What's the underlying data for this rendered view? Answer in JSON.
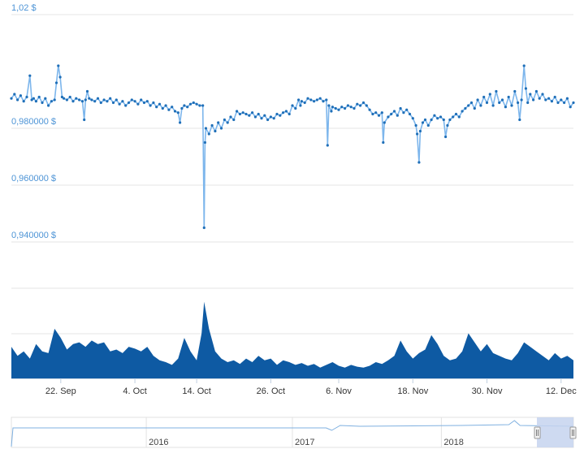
{
  "chart_data": {
    "type": "line",
    "title": "",
    "xlabel": "",
    "ylabel": "",
    "ylim": [
      0.93,
      1.02
    ],
    "y_ticks": [
      {
        "value": 1.02,
        "label": "1,02 $"
      },
      {
        "value": 0.98,
        "label": "0,980000 $"
      },
      {
        "value": 0.96,
        "label": "0,960000 $"
      },
      {
        "value": 0.94,
        "label": "0,940000 $"
      }
    ],
    "x_ticks": [
      {
        "day": 8,
        "label": "22. Sep"
      },
      {
        "day": 20,
        "label": "4. Oct"
      },
      {
        "day": 30,
        "label": "14. Oct"
      },
      {
        "day": 42,
        "label": "26. Oct"
      },
      {
        "day": 53,
        "label": "6. Nov"
      },
      {
        "day": 65,
        "label": "18. Nov"
      },
      {
        "day": 77,
        "label": "30. Nov"
      },
      {
        "day": 89,
        "label": "12. Dec"
      }
    ],
    "x_range_days": [
      0,
      91
    ],
    "grid": true,
    "legend": "none",
    "colors": {
      "line": "#1f6fb8",
      "line_light": "#7db6ec",
      "volume": "#0e5aa3",
      "axis_label": "#4d94d6",
      "grid": "#e6e6e6",
      "navigator_mask": "#c5d3ee"
    },
    "price_series": {
      "name": "",
      "points": [
        [
          0,
          0.9905
        ],
        [
          0.5,
          0.992
        ],
        [
          1,
          0.99
        ],
        [
          1.5,
          0.9915
        ],
        [
          2,
          0.9895
        ],
        [
          2.5,
          0.991
        ],
        [
          3,
          0.9985
        ],
        [
          3.3,
          0.99
        ],
        [
          3.6,
          0.9905
        ],
        [
          4,
          0.9895
        ],
        [
          4.5,
          0.991
        ],
        [
          5,
          0.989
        ],
        [
          5.5,
          0.9905
        ],
        [
          6,
          0.988
        ],
        [
          6.5,
          0.9895
        ],
        [
          7,
          0.99
        ],
        [
          7.3,
          0.996
        ],
        [
          7.6,
          1.002
        ],
        [
          7.9,
          0.998
        ],
        [
          8.2,
          0.991
        ],
        [
          8.5,
          0.9905
        ],
        [
          9,
          0.99
        ],
        [
          9.5,
          0.991
        ],
        [
          10,
          0.9895
        ],
        [
          10.5,
          0.9905
        ],
        [
          11,
          0.99
        ],
        [
          11.5,
          0.9895
        ],
        [
          11.8,
          0.983
        ],
        [
          12,
          0.99
        ],
        [
          12.3,
          0.993
        ],
        [
          12.6,
          0.9905
        ],
        [
          13,
          0.99
        ],
        [
          13.5,
          0.9895
        ],
        [
          14,
          0.9905
        ],
        [
          14.5,
          0.989
        ],
        [
          15,
          0.99
        ],
        [
          15.5,
          0.9895
        ],
        [
          16,
          0.9905
        ],
        [
          16.5,
          0.989
        ],
        [
          17,
          0.99
        ],
        [
          17.5,
          0.9885
        ],
        [
          18,
          0.9895
        ],
        [
          18.5,
          0.988
        ],
        [
          19,
          0.989
        ],
        [
          19.5,
          0.99
        ],
        [
          20,
          0.9895
        ],
        [
          20.5,
          0.9885
        ],
        [
          21,
          0.99
        ],
        [
          21.5,
          0.989
        ],
        [
          22,
          0.9895
        ],
        [
          22.5,
          0.988
        ],
        [
          23,
          0.989
        ],
        [
          23.5,
          0.9875
        ],
        [
          24,
          0.9885
        ],
        [
          24.5,
          0.987
        ],
        [
          25,
          0.988
        ],
        [
          25.5,
          0.9865
        ],
        [
          26,
          0.9875
        ],
        [
          26.5,
          0.986
        ],
        [
          27,
          0.9855
        ],
        [
          27.3,
          0.982
        ],
        [
          27.6,
          0.987
        ],
        [
          28,
          0.988
        ],
        [
          28.5,
          0.9875
        ],
        [
          29,
          0.9885
        ],
        [
          29.5,
          0.989
        ],
        [
          30,
          0.9885
        ],
        [
          30.5,
          0.988
        ],
        [
          31,
          0.988
        ],
        [
          31.2,
          0.945
        ],
        [
          31.35,
          0.975
        ],
        [
          31.5,
          0.98
        ],
        [
          32,
          0.978
        ],
        [
          32.5,
          0.981
        ],
        [
          33,
          0.979
        ],
        [
          33.5,
          0.982
        ],
        [
          34,
          0.98
        ],
        [
          34.5,
          0.983
        ],
        [
          35,
          0.982
        ],
        [
          35.5,
          0.984
        ],
        [
          36,
          0.983
        ],
        [
          36.5,
          0.986
        ],
        [
          37,
          0.985
        ],
        [
          37.5,
          0.9855
        ],
        [
          38,
          0.985
        ],
        [
          38.5,
          0.9845
        ],
        [
          39,
          0.9855
        ],
        [
          39.5,
          0.984
        ],
        [
          40,
          0.985
        ],
        [
          40.5,
          0.9835
        ],
        [
          41,
          0.9845
        ],
        [
          41.5,
          0.983
        ],
        [
          42,
          0.984
        ],
        [
          42.5,
          0.9835
        ],
        [
          43,
          0.985
        ],
        [
          43.5,
          0.9845
        ],
        [
          44,
          0.9855
        ],
        [
          44.5,
          0.986
        ],
        [
          45,
          0.985
        ],
        [
          45.5,
          0.988
        ],
        [
          46,
          0.987
        ],
        [
          46.5,
          0.99
        ],
        [
          46.8,
          0.988
        ],
        [
          47,
          0.9895
        ],
        [
          47.5,
          0.989
        ],
        [
          48,
          0.9905
        ],
        [
          48.5,
          0.99
        ],
        [
          49,
          0.9895
        ],
        [
          49.5,
          0.99
        ],
        [
          50,
          0.9905
        ],
        [
          50.5,
          0.9895
        ],
        [
          51,
          0.99
        ],
        [
          51.2,
          0.974
        ],
        [
          51.4,
          0.988
        ],
        [
          51.8,
          0.986
        ],
        [
          52,
          0.9875
        ],
        [
          52.5,
          0.987
        ],
        [
          53,
          0.9865
        ],
        [
          53.5,
          0.9875
        ],
        [
          54,
          0.987
        ],
        [
          54.5,
          0.988
        ],
        [
          55,
          0.9875
        ],
        [
          55.5,
          0.987
        ],
        [
          56,
          0.9885
        ],
        [
          56.5,
          0.988
        ],
        [
          57,
          0.989
        ],
        [
          57.5,
          0.988
        ],
        [
          58,
          0.9865
        ],
        [
          58.5,
          0.985
        ],
        [
          59,
          0.9855
        ],
        [
          59.5,
          0.9845
        ],
        [
          60,
          0.9855
        ],
        [
          60.2,
          0.975
        ],
        [
          60.4,
          0.982
        ],
        [
          61,
          0.984
        ],
        [
          61.5,
          0.985
        ],
        [
          62,
          0.986
        ],
        [
          62.5,
          0.9845
        ],
        [
          63,
          0.987
        ],
        [
          63.5,
          0.9855
        ],
        [
          64,
          0.9865
        ],
        [
          64.5,
          0.985
        ],
        [
          65,
          0.9835
        ],
        [
          65.5,
          0.981
        ],
        [
          65.7,
          0.978
        ],
        [
          66,
          0.968
        ],
        [
          66.2,
          0.979
        ],
        [
          66.6,
          0.982
        ],
        [
          67,
          0.983
        ],
        [
          67.5,
          0.981
        ],
        [
          68,
          0.983
        ],
        [
          68.5,
          0.9845
        ],
        [
          69,
          0.9835
        ],
        [
          69.5,
          0.984
        ],
        [
          70,
          0.983
        ],
        [
          70.3,
          0.977
        ],
        [
          70.6,
          0.981
        ],
        [
          71,
          0.983
        ],
        [
          71.5,
          0.984
        ],
        [
          72,
          0.985
        ],
        [
          72.5,
          0.984
        ],
        [
          73,
          0.986
        ],
        [
          73.5,
          0.987
        ],
        [
          74,
          0.988
        ],
        [
          74.5,
          0.989
        ],
        [
          75,
          0.987
        ],
        [
          75.5,
          0.99
        ],
        [
          76,
          0.988
        ],
        [
          76.5,
          0.991
        ],
        [
          77,
          0.989
        ],
        [
          77.5,
          0.992
        ],
        [
          78,
          0.988
        ],
        [
          78.5,
          0.993
        ],
        [
          79,
          0.989
        ],
        [
          79.5,
          0.99
        ],
        [
          80,
          0.9875
        ],
        [
          80.5,
          0.991
        ],
        [
          81,
          0.988
        ],
        [
          81.5,
          0.993
        ],
        [
          82,
          0.989
        ],
        [
          82.3,
          0.983
        ],
        [
          82.6,
          0.99
        ],
        [
          83,
          1.002
        ],
        [
          83.3,
          0.994
        ],
        [
          83.6,
          0.989
        ],
        [
          84,
          0.992
        ],
        [
          84.5,
          0.99
        ],
        [
          85,
          0.993
        ],
        [
          85.5,
          0.9905
        ],
        [
          86,
          0.992
        ],
        [
          86.5,
          0.99
        ],
        [
          87,
          0.9905
        ],
        [
          87.5,
          0.9895
        ],
        [
          88,
          0.991
        ],
        [
          88.5,
          0.989
        ],
        [
          89,
          0.99
        ],
        [
          89.5,
          0.989
        ],
        [
          90,
          0.9905
        ],
        [
          90.5,
          0.9875
        ],
        [
          91,
          0.989
        ]
      ]
    },
    "volume_series": {
      "name": "",
      "points": [
        [
          0,
          0.35
        ],
        [
          1,
          0.25
        ],
        [
          2,
          0.3
        ],
        [
          3,
          0.22
        ],
        [
          4,
          0.38
        ],
        [
          5,
          0.3
        ],
        [
          6,
          0.28
        ],
        [
          7,
          0.55
        ],
        [
          8,
          0.45
        ],
        [
          9,
          0.32
        ],
        [
          10,
          0.38
        ],
        [
          11,
          0.4
        ],
        [
          12,
          0.35
        ],
        [
          13,
          0.42
        ],
        [
          14,
          0.38
        ],
        [
          15,
          0.4
        ],
        [
          16,
          0.3
        ],
        [
          17,
          0.32
        ],
        [
          18,
          0.28
        ],
        [
          19,
          0.35
        ],
        [
          20,
          0.33
        ],
        [
          21,
          0.3
        ],
        [
          22,
          0.35
        ],
        [
          23,
          0.25
        ],
        [
          24,
          0.2
        ],
        [
          25,
          0.18
        ],
        [
          26,
          0.15
        ],
        [
          27,
          0.22
        ],
        [
          28,
          0.45
        ],
        [
          29,
          0.3
        ],
        [
          30,
          0.2
        ],
        [
          30.8,
          0.5
        ],
        [
          31.2,
          0.85
        ],
        [
          32,
          0.55
        ],
        [
          33,
          0.3
        ],
        [
          34,
          0.22
        ],
        [
          35,
          0.18
        ],
        [
          36,
          0.2
        ],
        [
          37,
          0.16
        ],
        [
          38,
          0.22
        ],
        [
          39,
          0.18
        ],
        [
          40,
          0.25
        ],
        [
          41,
          0.2
        ],
        [
          42,
          0.22
        ],
        [
          43,
          0.15
        ],
        [
          44,
          0.2
        ],
        [
          45,
          0.18
        ],
        [
          46,
          0.15
        ],
        [
          47,
          0.17
        ],
        [
          48,
          0.14
        ],
        [
          49,
          0.16
        ],
        [
          50,
          0.12
        ],
        [
          51,
          0.15
        ],
        [
          52,
          0.18
        ],
        [
          53,
          0.14
        ],
        [
          54,
          0.12
        ],
        [
          55,
          0.15
        ],
        [
          56,
          0.13
        ],
        [
          57,
          0.12
        ],
        [
          58,
          0.14
        ],
        [
          59,
          0.18
        ],
        [
          60,
          0.16
        ],
        [
          61,
          0.2
        ],
        [
          62,
          0.25
        ],
        [
          63,
          0.42
        ],
        [
          64,
          0.3
        ],
        [
          65,
          0.22
        ],
        [
          66,
          0.28
        ],
        [
          67,
          0.32
        ],
        [
          68,
          0.48
        ],
        [
          69,
          0.38
        ],
        [
          70,
          0.25
        ],
        [
          71,
          0.2
        ],
        [
          72,
          0.22
        ],
        [
          73,
          0.3
        ],
        [
          74,
          0.5
        ],
        [
          75,
          0.4
        ],
        [
          76,
          0.3
        ],
        [
          77,
          0.38
        ],
        [
          78,
          0.28
        ],
        [
          79,
          0.25
        ],
        [
          80,
          0.22
        ],
        [
          81,
          0.2
        ],
        [
          82,
          0.28
        ],
        [
          83,
          0.4
        ],
        [
          84,
          0.35
        ],
        [
          85,
          0.3
        ],
        [
          86,
          0.25
        ],
        [
          87,
          0.2
        ],
        [
          88,
          0.28
        ],
        [
          89,
          0.22
        ],
        [
          90,
          0.25
        ],
        [
          91,
          0.2
        ]
      ]
    },
    "navigator": {
      "labels": [
        {
          "pos": 0.24,
          "label": "2016"
        },
        {
          "pos": 0.5,
          "label": "2017"
        },
        {
          "pos": 0.765,
          "label": "2018"
        }
      ],
      "selection": [
        0.935,
        1.0
      ]
    }
  }
}
